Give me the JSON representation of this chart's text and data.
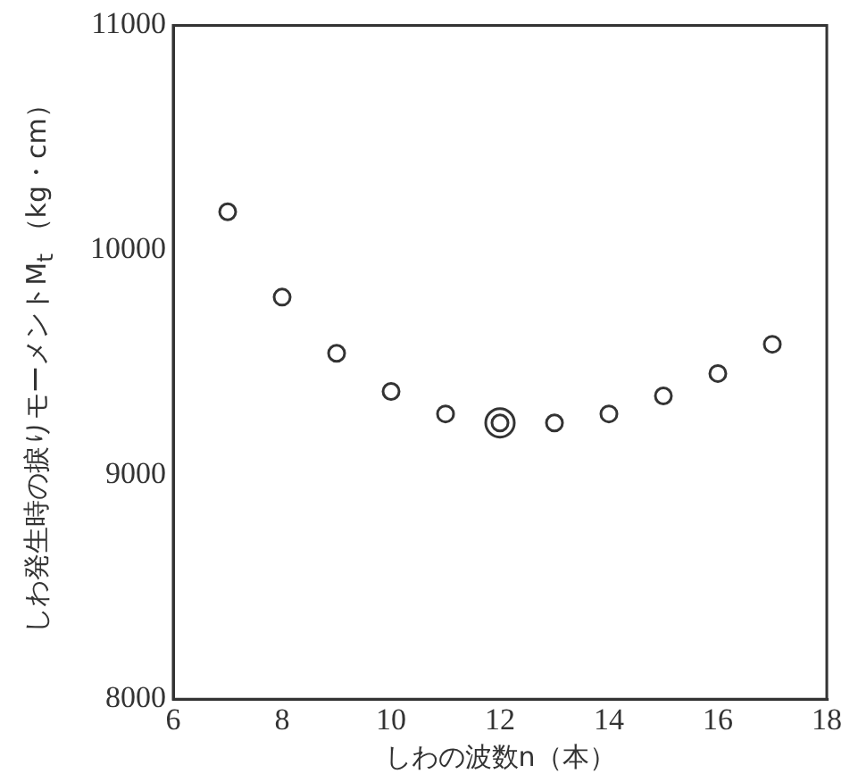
{
  "chart_data": {
    "type": "scatter",
    "xlabel": "しわの波数n（本）",
    "ylabel": "しわ発生時の捩りモーメントM$_{t}$ （kg・cm）",
    "xlim": [
      6,
      18
    ],
    "xticks": [
      6,
      8,
      10,
      12,
      14,
      16,
      18
    ],
    "ylim": [
      8000,
      11000
    ],
    "yticks": [
      8000,
      9000,
      10000,
      11000
    ],
    "grid": false,
    "legend": false,
    "marker": "circle",
    "series": [
      {
        "color": "#333333",
        "x": [
          7,
          8,
          9,
          10,
          11,
          12,
          13,
          14,
          15,
          16,
          17
        ],
        "values": [
          10170,
          9790,
          9540,
          9370,
          9270,
          9230,
          9230,
          9270,
          9350,
          9450,
          9580
        ]
      },
      {
        "color": "#333333",
        "x": [
          12
        ],
        "values": [
          9230
        ]
      }
    ]
  }
}
